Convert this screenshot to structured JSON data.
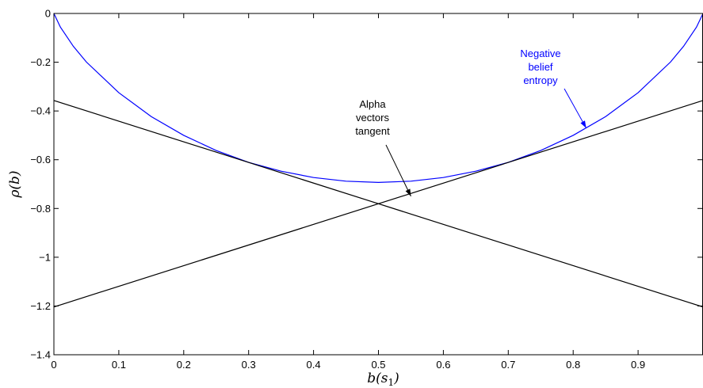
{
  "chart_data": {
    "type": "line",
    "title": "",
    "xlabel": "b(s",
    "xlabel_sub": "1",
    "xlabel_close": ")",
    "ylabel": "ρ(b)",
    "xlim": [
      0,
      1
    ],
    "ylim": [
      -1.4,
      0
    ],
    "grid": false,
    "xticks": [
      0,
      0.1,
      0.2,
      0.3,
      0.4,
      0.5,
      0.6,
      0.7,
      0.8,
      0.9
    ],
    "xtick_labels": [
      "0",
      "0.1",
      "0.2",
      "0.3",
      "0.4",
      "0.5",
      "0.6",
      "0.7",
      "0.8",
      "0.9"
    ],
    "yticks": [
      0,
      -0.2,
      -0.4,
      -0.6,
      -0.8,
      -1,
      -1.2,
      -1.4
    ],
    "ytick_labels": [
      "0",
      "−0.2",
      "−0.4",
      "−0.6",
      "−0.8",
      "−1",
      "−1.2",
      "−1.4"
    ],
    "series": [
      {
        "kind": "negative-entropy",
        "color": "#0000ff",
        "x": [
          0,
          0.01,
          0.03,
          0.05,
          0.1,
          0.15,
          0.2,
          0.25,
          0.3,
          0.35,
          0.4,
          0.45,
          0.5,
          0.55,
          0.6,
          0.65,
          0.7,
          0.75,
          0.8,
          0.85,
          0.9,
          0.95,
          0.97,
          0.99,
          1
        ],
        "y": [
          0,
          -0.056,
          -0.135,
          -0.199,
          -0.325,
          -0.423,
          -0.5,
          -0.562,
          -0.611,
          -0.647,
          -0.673,
          -0.688,
          -0.693,
          -0.688,
          -0.673,
          -0.647,
          -0.611,
          -0.562,
          -0.5,
          -0.423,
          -0.325,
          -0.199,
          -0.135,
          -0.056,
          0
        ]
      },
      {
        "kind": "alpha-vector",
        "color": "#000000",
        "x": [
          0,
          1
        ],
        "y": [
          -1.204,
          -0.357
        ]
      },
      {
        "kind": "alpha-vector",
        "color": "#000000",
        "x": [
          0,
          1
        ],
        "y": [
          -0.357,
          -1.204
        ]
      }
    ],
    "annotations": [
      {
        "lines": [
          "Negative",
          "belief",
          "entropy"
        ],
        "color": "#0000ff",
        "arrow_to": [
          0.82,
          -0.47
        ]
      },
      {
        "lines": [
          "Alpha",
          "vectors",
          "tangent"
        ],
        "color": "#000000",
        "arrow_to": [
          0.55,
          -0.75
        ]
      }
    ]
  }
}
